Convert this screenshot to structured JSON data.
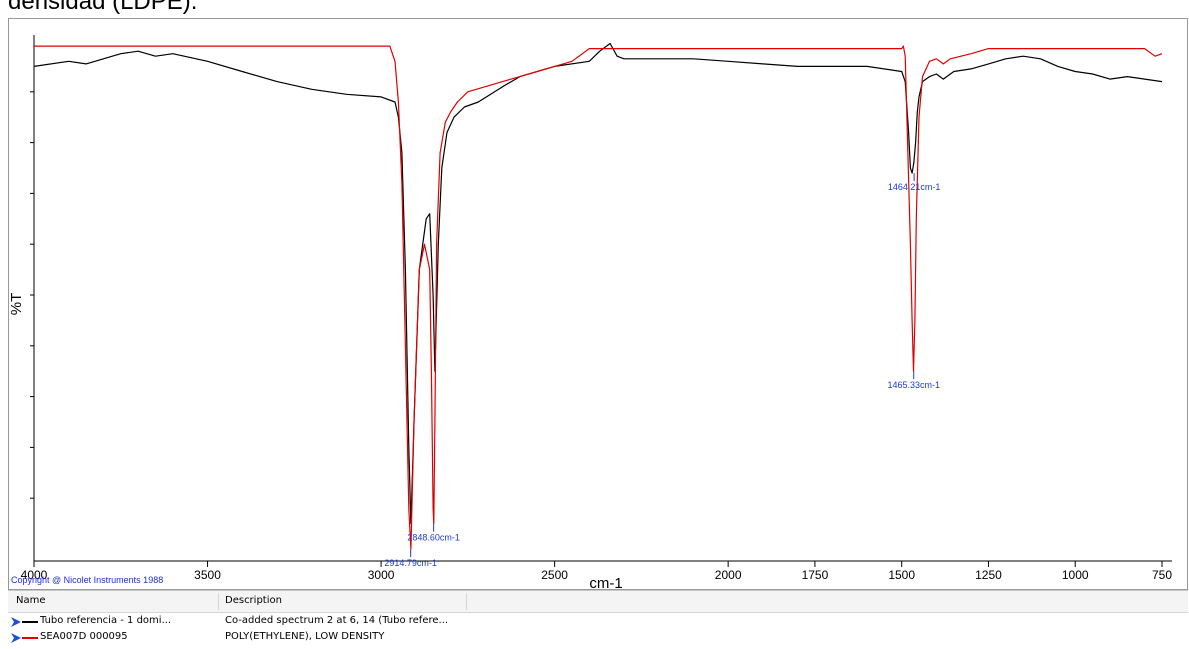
{
  "caption": "densidad (LDPE).",
  "chart_data": {
    "type": "line",
    "title": "",
    "xlabel": "cm-1",
    "ylabel": "%T",
    "xlim": [
      4000,
      750
    ],
    "x_reversed": true,
    "ylim": [
      0,
      100
    ],
    "x_ticks": [
      4000,
      3500,
      3000,
      2500,
      2000,
      1750,
      1500,
      1250,
      1000,
      750
    ],
    "y_ticks_labeled": false,
    "y_minor_ticks": [
      10,
      20,
      30,
      40,
      50,
      60,
      70,
      80,
      90
    ],
    "grid": false,
    "copyright": "Copyright @ Nicolet Instruments 1988",
    "series": [
      {
        "name": "Tubo referencia - 1 domi...",
        "color": "#000000",
        "x": [
          4000,
          3900,
          3850,
          3800,
          3750,
          3700,
          3650,
          3600,
          3500,
          3400,
          3300,
          3200,
          3100,
          3000,
          2960,
          2950,
          2940,
          2930,
          2920,
          2914,
          2905,
          2890,
          2870,
          2860,
          2850,
          2845,
          2835,
          2825,
          2810,
          2790,
          2760,
          2720,
          2650,
          2600,
          2500,
          2400,
          2370,
          2340,
          2320,
          2300,
          2200,
          2100,
          2000,
          1900,
          1800,
          1700,
          1600,
          1500,
          1490,
          1480,
          1475,
          1470,
          1465,
          1460,
          1455,
          1450,
          1440,
          1420,
          1400,
          1380,
          1350,
          1300,
          1250,
          1200,
          1150,
          1100,
          1050,
          1000,
          950,
          900,
          850,
          800,
          750
        ],
        "y": [
          95,
          96,
          95.5,
          96.5,
          97.5,
          98,
          97,
          97.5,
          96,
          94,
          92,
          90.5,
          89.5,
          89,
          88,
          85,
          78,
          55,
          20,
          5,
          25,
          55,
          65,
          66,
          50,
          35,
          60,
          75,
          82,
          85,
          87,
          88,
          91,
          93,
          95,
          96,
          98,
          99.5,
          97,
          96.5,
          96.5,
          96.5,
          96,
          95.5,
          95,
          95,
          95,
          94,
          92,
          82,
          75,
          74,
          76,
          80,
          86,
          89,
          92,
          93,
          93.5,
          92.5,
          94,
          94.5,
          95.5,
          96.5,
          97,
          96.5,
          95,
          94,
          93.5,
          92.5,
          93,
          92.5,
          92
        ]
      },
      {
        "name": "SEA007D 000095",
        "color": "#e00000",
        "x": [
          4000,
          3500,
          3000,
          2975,
          2960,
          2950,
          2940,
          2930,
          2920,
          2914,
          2905,
          2890,
          2875,
          2860,
          2855,
          2850,
          2848,
          2845,
          2840,
          2830,
          2815,
          2800,
          2780,
          2750,
          2700,
          2650,
          2600,
          2550,
          2500,
          2450,
          2400,
          2000,
          1500,
          1495,
          1490,
          1485,
          1475,
          1470,
          1466,
          1462,
          1458,
          1450,
          1440,
          1420,
          1400,
          1380,
          1360,
          1300,
          1250,
          1200,
          1100,
          1000,
          900,
          800,
          770,
          750
        ],
        "y": [
          99,
          99,
          99,
          99,
          96,
          88,
          72,
          40,
          8,
          0,
          25,
          55,
          60,
          55,
          35,
          8,
          5,
          25,
          60,
          78,
          84,
          86,
          88,
          90,
          91,
          92,
          93,
          94,
          95,
          96,
          98.5,
          98.5,
          98.5,
          99,
          97,
          85,
          60,
          45,
          35,
          45,
          65,
          85,
          93,
          96,
          96.5,
          95.5,
          96.5,
          97.5,
          98.5,
          98.5,
          98.5,
          98.5,
          98.5,
          98.5,
          97,
          97.5
        ]
      }
    ],
    "annotations": [
      {
        "text": "2914.79cm-1",
        "x": 2914.79,
        "y": 0
      },
      {
        "text": "2848.60cm-1",
        "x": 2848.6,
        "y": 5
      },
      {
        "text": "1464.21cm-1",
        "x": 1464.21,
        "y": 74
      },
      {
        "text": "1465.33cm-1",
        "x": 1465.33,
        "y": 35
      }
    ]
  },
  "legend_table": {
    "headers": [
      "Name",
      "Description"
    ],
    "rows": [
      {
        "name": "Tubo referencia - 1 domi...",
        "description": "Co-added spectrum 2 at 6, 14 (Tubo refere...",
        "color": "#000000"
      },
      {
        "name": "SEA007D 000095",
        "description": "POLY(ETHYLENE), LOW DENSITY",
        "color": "#e00000"
      }
    ]
  }
}
